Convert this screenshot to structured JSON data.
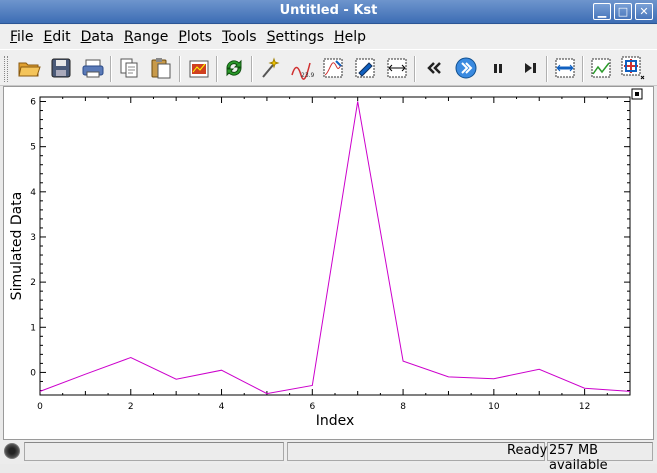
{
  "window": {
    "title": "Untitled - Kst",
    "minimize": "▁",
    "maximize": "□",
    "close": "✕"
  },
  "menu": [
    {
      "ul": "F",
      "rest": "ile"
    },
    {
      "ul": "E",
      "rest": "dit"
    },
    {
      "ul": "D",
      "rest": "ata"
    },
    {
      "ul": "R",
      "rest": "ange"
    },
    {
      "ul": "P",
      "rest": "lots"
    },
    {
      "ul": "T",
      "rest": "ools"
    },
    {
      "ul": "S",
      "rest": "ettings"
    },
    {
      "ul": "H",
      "rest": "elp"
    }
  ],
  "toolbar_icons": [
    "open-folder-icon",
    "save-icon",
    "print-icon",
    "copy-icon",
    "paste-icon",
    "data-wizard-icon",
    "reload-icon",
    "magic-wand-icon",
    "plugin-icon",
    "curve-icon",
    "equation-icon",
    "histogram-icon",
    "rewind-icon",
    "play-icon",
    "pause-icon",
    "skip-end-icon",
    "layout-icon",
    "graph-mode-icon",
    "zoom-mode-icon"
  ],
  "chart_data": {
    "type": "line",
    "xlabel": "Index",
    "ylabel": "Simulated Data",
    "xlim": [
      0,
      13
    ],
    "ylim": [
      -0.5,
      6.1
    ],
    "x_ticks": [
      0,
      2,
      4,
      6,
      8,
      10,
      12
    ],
    "y_ticks": [
      0,
      1,
      2,
      3,
      4,
      5,
      6
    ],
    "color": "#cc00cc",
    "series": [
      {
        "x": [
          0,
          1,
          2,
          3,
          4,
          5,
          6,
          7,
          8,
          9,
          10,
          11,
          12,
          13
        ],
        "y": [
          -0.42,
          -0.04,
          0.33,
          -0.15,
          0.05,
          -0.47,
          -0.29,
          6.0,
          0.25,
          -0.1,
          -0.14,
          0.07,
          -0.35,
          -0.42
        ]
      }
    ]
  },
  "status": {
    "ready": "Ready",
    "memory": "257 MB available"
  }
}
